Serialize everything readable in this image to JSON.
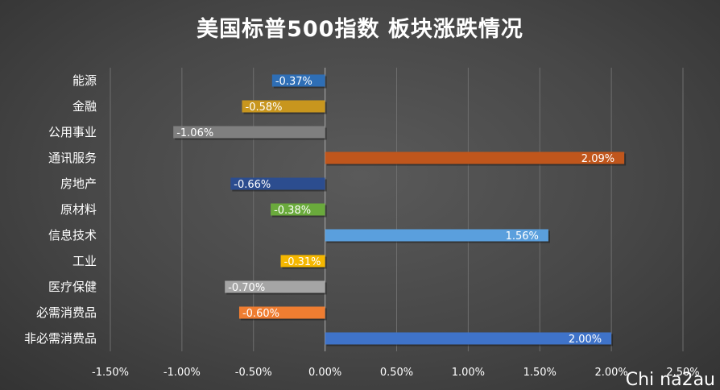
{
  "chart_data": {
    "type": "bar",
    "orientation": "horizontal",
    "title": "美国标普500指数 板块涨跌情况",
    "categories": [
      "能源",
      "金融",
      "公用事业",
      "通讯服务",
      "房地产",
      "原材料",
      "信息技术",
      "工业",
      "医疗保健",
      "必需消费品",
      "非必需消费品"
    ],
    "values": [
      -0.37,
      -0.58,
      -1.06,
      2.09,
      -0.66,
      -0.38,
      1.56,
      -0.31,
      -0.7,
      -0.6,
      2.0
    ],
    "labels": [
      "-0.37%",
      "-0.58%",
      "-1.06%",
      "2.09%",
      "-0.66%",
      "-0.38%",
      "1.56%",
      "-0.31%",
      "-0.70%",
      "-0.60%",
      "2.00%"
    ],
    "colors": [
      "#2e6eb5",
      "#c8961e",
      "#7f7f7f",
      "#c0561c",
      "#2c4d8f",
      "#6aaa3c",
      "#5a9fdd",
      "#f5b700",
      "#a5a5a5",
      "#ef7d31",
      "#3f73c9"
    ],
    "xlim": [
      -1.5,
      2.5
    ],
    "xticks": [
      -1.5,
      -1.0,
      -0.5,
      0.0,
      0.5,
      1.0,
      1.5,
      2.0,
      2.5
    ],
    "xtick_labels": [
      "-1.50%",
      "-1.00%",
      "-0.50%",
      "0.00%",
      "0.50%",
      "1.00%",
      "1.50%",
      "2.00%",
      "2.50%"
    ],
    "grid": true,
    "legend": "none"
  },
  "watermark": "Chi na2au"
}
